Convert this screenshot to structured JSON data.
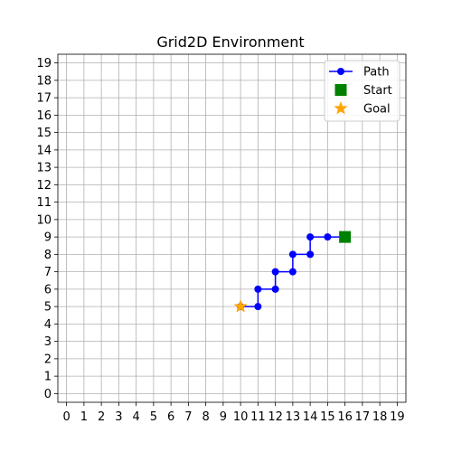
{
  "chart_data": {
    "type": "scatter",
    "title": "Grid2D Environment",
    "xlabel": "",
    "ylabel": "",
    "xlim": [
      -0.5,
      19.5
    ],
    "ylim": [
      -0.5,
      19.5
    ],
    "x_ticks": [
      "0",
      "1",
      "2",
      "3",
      "4",
      "5",
      "6",
      "7",
      "8",
      "9",
      "10",
      "11",
      "12",
      "13",
      "14",
      "15",
      "16",
      "17",
      "18",
      "19"
    ],
    "y_ticks": [
      "0",
      "1",
      "2",
      "3",
      "4",
      "5",
      "6",
      "7",
      "8",
      "9",
      "10",
      "11",
      "12",
      "13",
      "14",
      "15",
      "16",
      "17",
      "18",
      "19"
    ],
    "grid": true,
    "legend_position": "top-right",
    "series": [
      {
        "name": "Path",
        "marker": "circle",
        "color": "#0000ff",
        "points": [
          [
            16,
            9
          ],
          [
            15,
            9
          ],
          [
            14,
            9
          ],
          [
            14,
            8
          ],
          [
            13,
            8
          ],
          [
            13,
            7
          ],
          [
            12,
            7
          ],
          [
            12,
            6
          ],
          [
            11,
            6
          ],
          [
            11,
            5
          ],
          [
            10,
            5
          ]
        ]
      },
      {
        "name": "Start",
        "marker": "square",
        "color": "#008000",
        "points": [
          [
            16,
            9
          ]
        ]
      },
      {
        "name": "Goal",
        "marker": "star",
        "color": "#ffa500",
        "points": [
          [
            10,
            5
          ]
        ]
      }
    ],
    "legend": [
      {
        "label": "Path",
        "marker": "circle-line",
        "color": "#0000ff"
      },
      {
        "label": "Start",
        "marker": "square",
        "color": "#008000"
      },
      {
        "label": "Goal",
        "marker": "star",
        "color": "#ffa500"
      }
    ]
  }
}
